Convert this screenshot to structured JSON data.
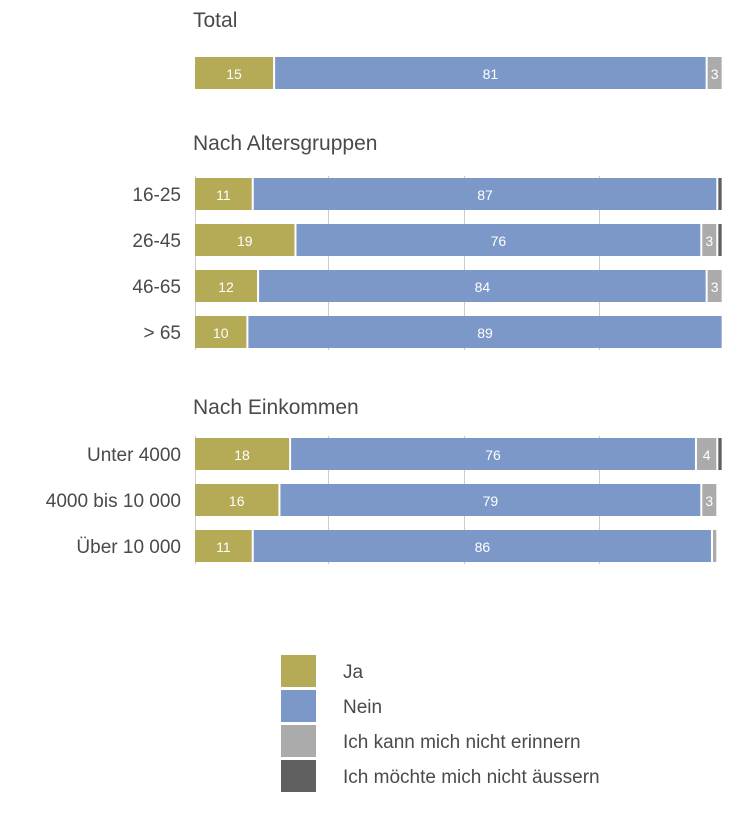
{
  "colors": {
    "ja": "#b5aa56",
    "nein": "#7b98c9",
    "erinnern": "#ababab",
    "aeussern": "#606060",
    "text": "#4a4a4a",
    "grid": "#cccccc"
  },
  "chart_data": {
    "type": "bar",
    "orientation": "horizontal",
    "stacked": true,
    "xlim": [
      0,
      100
    ],
    "series_names": [
      "Ja",
      "Nein",
      "Ich kann mich nicht erinnern",
      "Ich möchte mich nicht äussern"
    ],
    "groups": [
      {
        "title": "Total",
        "rows": [
          {
            "label": "",
            "values": [
              15,
              81,
              3,
              0
            ]
          }
        ]
      },
      {
        "title": "Nach Altersgruppen",
        "rows": [
          {
            "label": "16-25",
            "values": [
              11,
              87,
              0,
              1
            ]
          },
          {
            "label": "26-45",
            "values": [
              19,
              76,
              3,
              1
            ]
          },
          {
            "label": "46-65",
            "values": [
              12,
              84,
              3,
              0
            ]
          },
          {
            "label": "> 65",
            "values": [
              10,
              89,
              0,
              0
            ]
          }
        ]
      },
      {
        "title": "Nach Einkommen",
        "rows": [
          {
            "label": "Unter 4000",
            "values": [
              18,
              76,
              4,
              1
            ]
          },
          {
            "label": "4000 bis 10 000",
            "values": [
              16,
              79,
              3,
              0
            ]
          },
          {
            "label": "Über 10 000",
            "values": [
              11,
              86,
              1,
              0
            ]
          }
        ]
      }
    ]
  },
  "legend": [
    {
      "label": "Ja",
      "color": "#b5aa56"
    },
    {
      "label": "Nein",
      "color": "#7b98c9"
    },
    {
      "label": "Ich kann mich nicht erinnern",
      "color": "#ababab"
    },
    {
      "label": "Ich möchte mich nicht äussern",
      "color": "#606060"
    }
  ]
}
